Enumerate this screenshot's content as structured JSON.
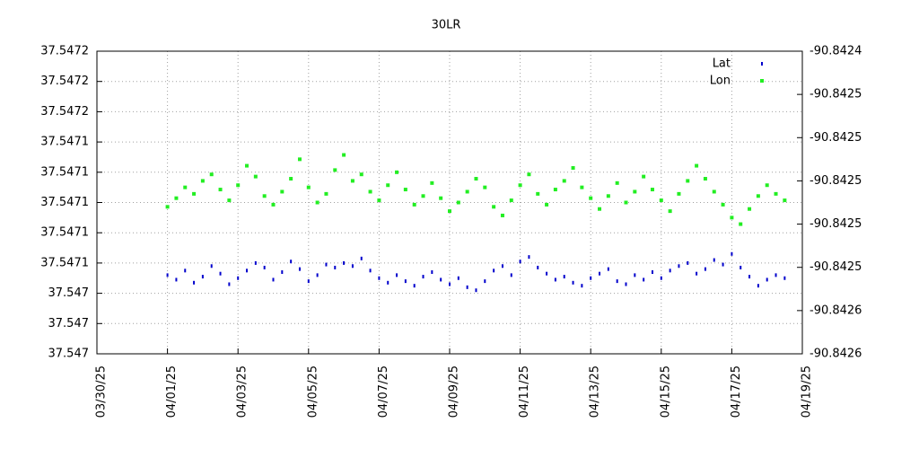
{
  "chart_data": {
    "type": "scatter",
    "title": "30LR",
    "x": [
      "04/01/25 00:00",
      "04/01/25 06:00",
      "04/01/25 12:00",
      "04/01/25 18:00",
      "04/02/25 00:00",
      "04/02/25 06:00",
      "04/02/25 12:00",
      "04/02/25 18:00",
      "04/03/25 00:00",
      "04/03/25 06:00",
      "04/03/25 12:00",
      "04/03/25 18:00",
      "04/04/25 00:00",
      "04/04/25 06:00",
      "04/04/25 12:00",
      "04/04/25 18:00",
      "04/05/25 00:00",
      "04/05/25 06:00",
      "04/05/25 12:00",
      "04/05/25 18:00",
      "04/06/25 00:00",
      "04/06/25 06:00",
      "04/06/25 12:00",
      "04/06/25 18:00",
      "04/07/25 00:00",
      "04/07/25 06:00",
      "04/07/25 12:00",
      "04/07/25 18:00",
      "04/08/25 00:00",
      "04/08/25 06:00",
      "04/08/25 12:00",
      "04/08/25 18:00",
      "04/09/25 00:00",
      "04/09/25 06:00",
      "04/09/25 12:00",
      "04/09/25 18:00",
      "04/10/25 00:00",
      "04/10/25 06:00",
      "04/10/25 12:00",
      "04/10/25 18:00",
      "04/11/25 00:00",
      "04/11/25 06:00",
      "04/11/25 12:00",
      "04/11/25 18:00",
      "04/12/25 00:00",
      "04/12/25 06:00",
      "04/12/25 12:00",
      "04/12/25 18:00",
      "04/13/25 00:00",
      "04/13/25 06:00",
      "04/13/25 12:00",
      "04/13/25 18:00",
      "04/14/25 00:00",
      "04/14/25 06:00",
      "04/14/25 12:00",
      "04/14/25 18:00",
      "04/15/25 00:00",
      "04/15/25 06:00",
      "04/15/25 12:00",
      "04/15/25 18:00",
      "04/16/25 00:00",
      "04/16/25 06:00",
      "04/16/25 12:00",
      "04/16/25 18:00",
      "04/17/25 00:00",
      "04/17/25 06:00",
      "04/17/25 12:00",
      "04/17/25 18:00",
      "04/18/25 00:00",
      "04/18/25 06:00",
      "04/18/25 12:00"
    ],
    "series": [
      {
        "name": "Lat",
        "color": "#0000cc",
        "axis": "y",
        "values": [
          37.547052,
          37.547049,
          37.547055,
          37.547047,
          37.547051,
          37.547058,
          37.547053,
          37.547046,
          37.54705,
          37.547055,
          37.54706,
          37.547057,
          37.547049,
          37.547054,
          37.547061,
          37.547056,
          37.547048,
          37.547052,
          37.547059,
          37.547057,
          37.54706,
          37.547058,
          37.547063,
          37.547055,
          37.54705,
          37.547047,
          37.547052,
          37.547048,
          37.547045,
          37.547051,
          37.547054,
          37.547049,
          37.547046,
          37.54705,
          37.547044,
          37.547042,
          37.547048,
          37.547055,
          37.547058,
          37.547052,
          37.547061,
          37.547064,
          37.547057,
          37.547053,
          37.547049,
          37.547051,
          37.547047,
          37.547045,
          37.54705,
          37.547053,
          37.547056,
          37.547048,
          37.547046,
          37.547052,
          37.547049,
          37.547054,
          37.54705,
          37.547055,
          37.547058,
          37.54706,
          37.547053,
          37.547056,
          37.547062,
          37.547059,
          37.547066,
          37.547057,
          37.547051,
          37.547045,
          37.547049,
          37.547052,
          37.54705
        ]
      },
      {
        "name": "Lon",
        "color": "#22ee22",
        "axis": "y2",
        "values": [
          -90.842512,
          -90.842508,
          -90.842503,
          -90.842506,
          -90.8425,
          -90.842497,
          -90.842504,
          -90.842509,
          -90.842502,
          -90.842493,
          -90.842498,
          -90.842507,
          -90.842511,
          -90.842505,
          -90.842499,
          -90.84249,
          -90.842503,
          -90.84251,
          -90.842506,
          -90.842495,
          -90.842488,
          -90.8425,
          -90.842497,
          -90.842505,
          -90.842509,
          -90.842502,
          -90.842496,
          -90.842504,
          -90.842511,
          -90.842507,
          -90.842501,
          -90.842508,
          -90.842514,
          -90.84251,
          -90.842505,
          -90.842499,
          -90.842503,
          -90.842512,
          -90.842516,
          -90.842509,
          -90.842502,
          -90.842497,
          -90.842506,
          -90.842511,
          -90.842504,
          -90.8425,
          -90.842494,
          -90.842503,
          -90.842508,
          -90.842513,
          -90.842507,
          -90.842501,
          -90.84251,
          -90.842505,
          -90.842498,
          -90.842504,
          -90.842509,
          -90.842514,
          -90.842506,
          -90.8425,
          -90.842493,
          -90.842499,
          -90.842505,
          -90.842511,
          -90.842517,
          -90.84252,
          -90.842513,
          -90.842507,
          -90.842502,
          -90.842506,
          -90.842509
        ]
      }
    ],
    "xlim": [
      "03/30/25",
      "04/19/25"
    ],
    "xticks": [
      "03/30/25",
      "04/01/25",
      "04/03/25",
      "04/05/25",
      "04/07/25",
      "04/09/25",
      "04/11/25",
      "04/13/25",
      "04/15/25",
      "04/17/25",
      "04/19/25"
    ],
    "ylim": [
      37.547,
      37.5472
    ],
    "yticks": [
      {
        "value": 37.547,
        "label": "37.547"
      },
      {
        "value": 37.54702,
        "label": "37.547"
      },
      {
        "value": 37.54704,
        "label": "37.547"
      },
      {
        "value": 37.54706,
        "label": "37.5471"
      },
      {
        "value": 37.54708,
        "label": "37.5471"
      },
      {
        "value": 37.5471,
        "label": "37.5471"
      },
      {
        "value": 37.54712,
        "label": "37.5471"
      },
      {
        "value": 37.54714,
        "label": "37.5471"
      },
      {
        "value": 37.54716,
        "label": "37.5472"
      },
      {
        "value": 37.54718,
        "label": "37.5472"
      },
      {
        "value": 37.5472,
        "label": "37.5472"
      }
    ],
    "y2lim": [
      -90.84258,
      -90.84244
    ],
    "y2ticks": [
      {
        "value": -90.84258,
        "label": "-90.8426"
      },
      {
        "value": -90.84256,
        "label": "-90.8426"
      },
      {
        "value": -90.84254,
        "label": "-90.8425"
      },
      {
        "value": -90.84252,
        "label": "-90.8425"
      },
      {
        "value": -90.8425,
        "label": "-90.8425"
      },
      {
        "value": -90.84248,
        "label": "-90.8425"
      },
      {
        "value": -90.84246,
        "label": "-90.8425"
      },
      {
        "value": -90.84244,
        "label": "-90.8424"
      }
    ],
    "grid": true,
    "legend": "top-right"
  }
}
